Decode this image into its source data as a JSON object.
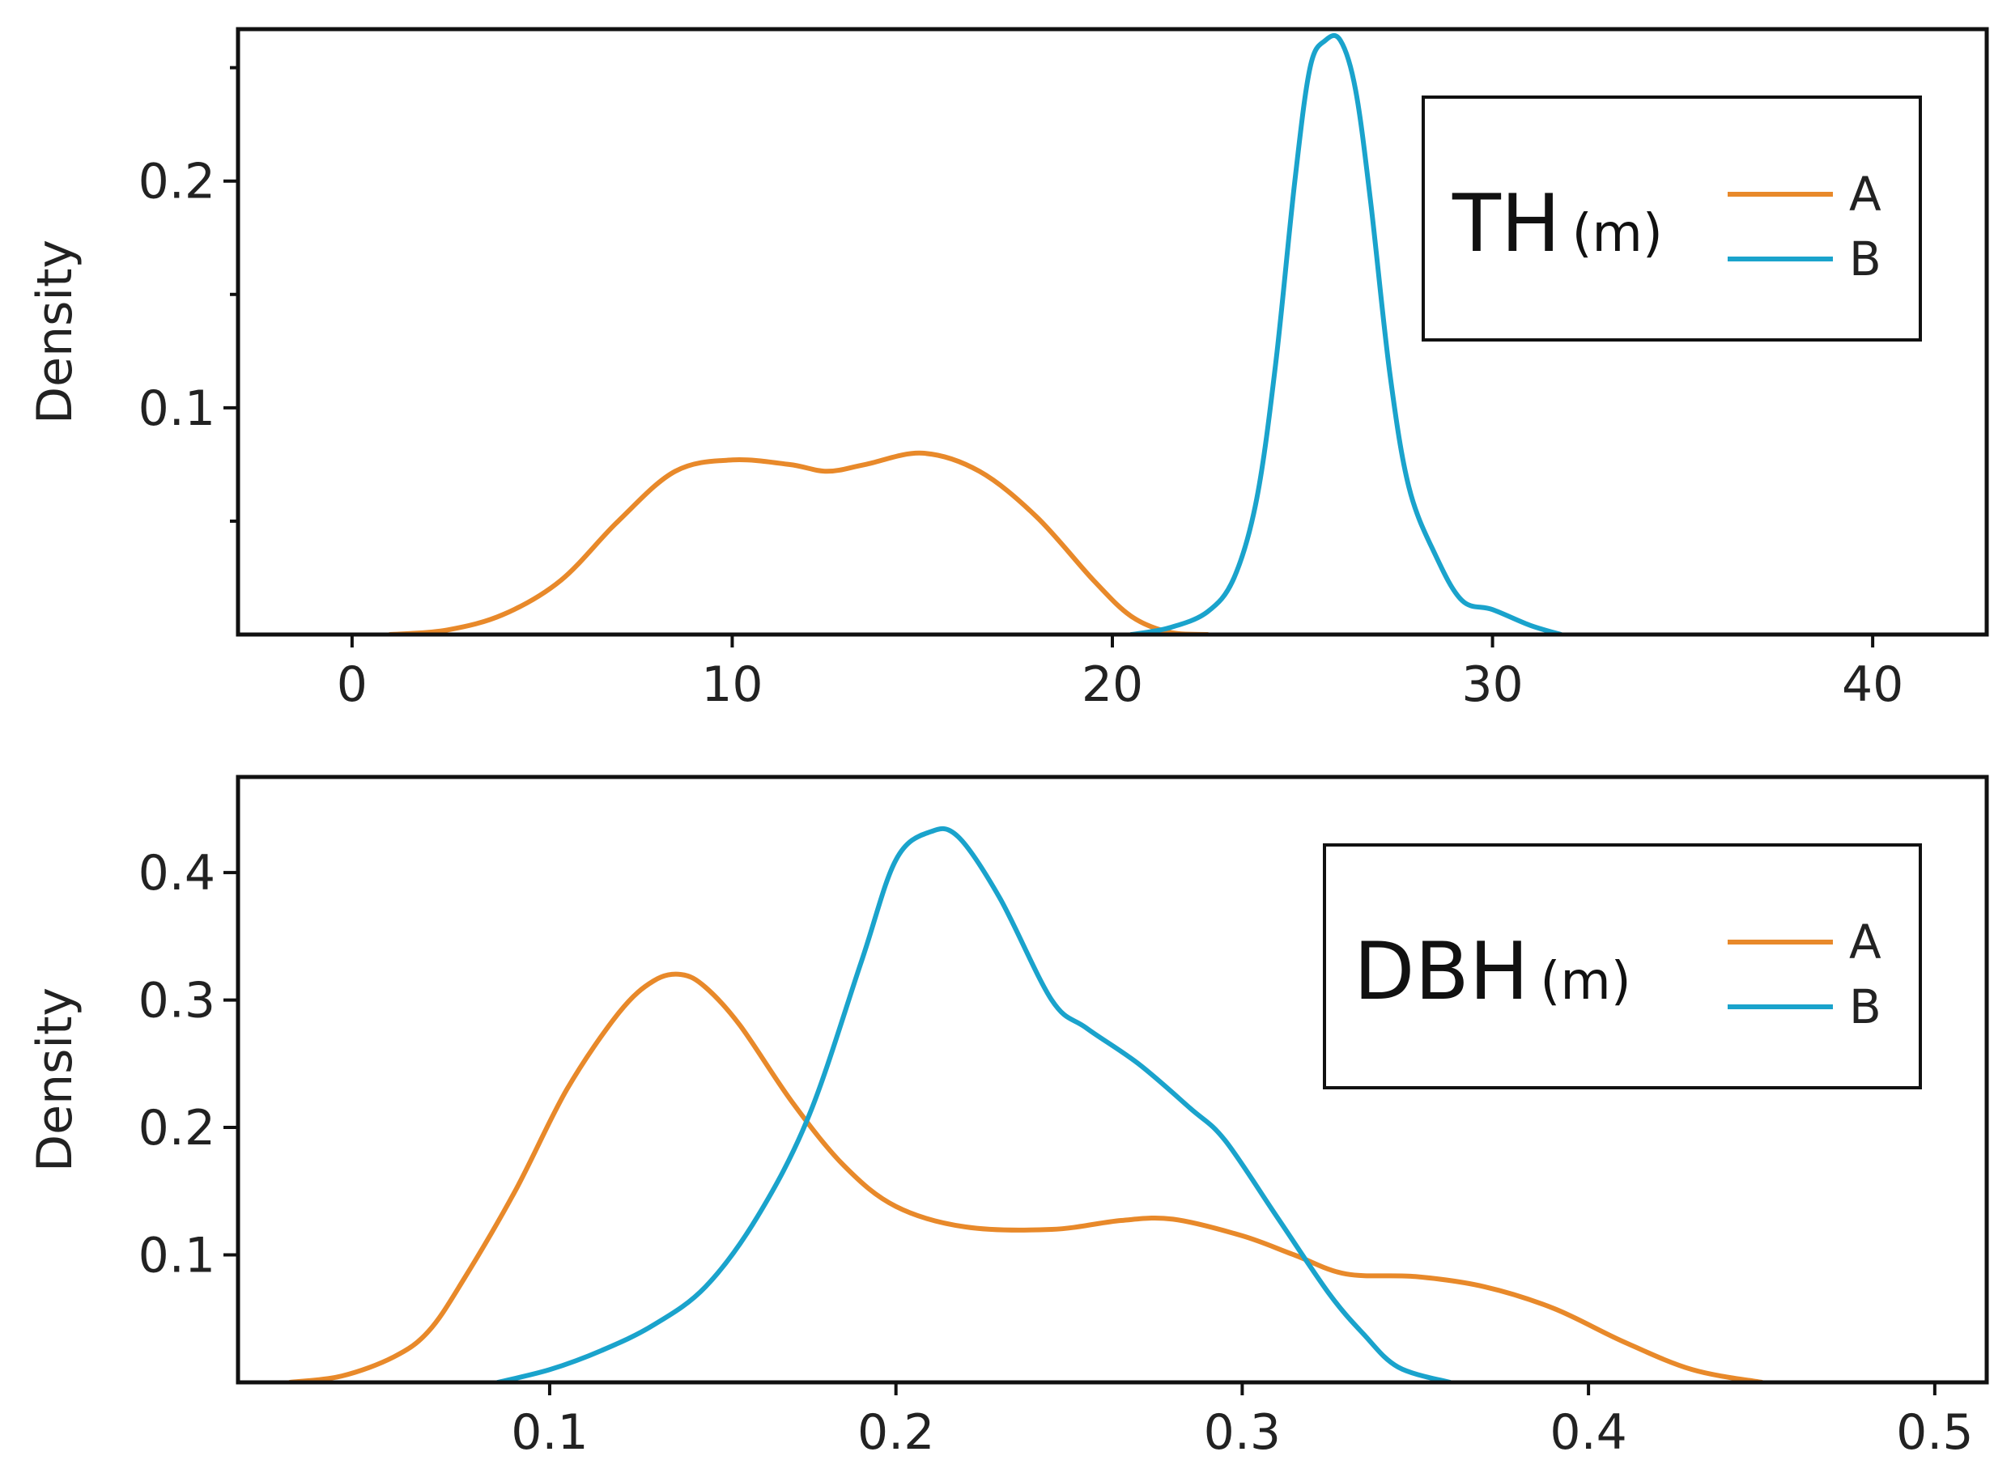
{
  "chart_data": [
    {
      "type": "line",
      "id": "th",
      "legend_title": "TH",
      "legend_unit": "(m)",
      "ylabel": "Density",
      "xlabel": "",
      "xlim": [
        -3,
        43
      ],
      "ylim": [
        0,
        0.267
      ],
      "xticks": [
        0,
        10,
        20,
        30,
        40
      ],
      "xtick_labels": [
        "0",
        "10",
        "20",
        "30",
        "40"
      ],
      "yticks": [
        0.1,
        0.2
      ],
      "ytick_labels": [
        "0.1",
        "0.2"
      ],
      "yminor_ticks": [
        0.05,
        0.15,
        0.25
      ],
      "legend_position": "top-right",
      "series": [
        {
          "name": "A",
          "color": "#E8892A",
          "x": [
            1,
            2.5,
            4,
            5.5,
            7,
            8.5,
            10,
            11.5,
            12.5,
            13.5,
            15,
            16.5,
            18,
            19.5,
            20.5,
            21.5,
            22.5
          ],
          "y": [
            0,
            0.002,
            0.009,
            0.024,
            0.05,
            0.072,
            0.077,
            0.075,
            0.072,
            0.075,
            0.08,
            0.072,
            0.052,
            0.024,
            0.008,
            0.001,
            0
          ]
        },
        {
          "name": "B",
          "color": "#1AA3CC",
          "x": [
            20.5,
            21.5,
            22.5,
            23.2,
            23.8,
            24.3,
            24.8,
            25.2,
            25.6,
            26.0,
            26.4,
            26.8,
            27.3,
            27.8,
            28.5,
            29.2,
            30.0,
            31.0,
            31.8
          ],
          "y": [
            0,
            0.003,
            0.01,
            0.025,
            0.06,
            0.12,
            0.2,
            0.25,
            0.262,
            0.262,
            0.24,
            0.19,
            0.115,
            0.065,
            0.035,
            0.015,
            0.011,
            0.004,
            0
          ]
        }
      ]
    },
    {
      "type": "line",
      "id": "dbh",
      "legend_title": "DBH",
      "legend_unit": "(m)",
      "ylabel": "Density",
      "xlabel": "",
      "xlim": [
        0.01,
        0.515
      ],
      "ylim": [
        0,
        0.475
      ],
      "xticks": [
        0.1,
        0.2,
        0.3,
        0.4,
        0.5
      ],
      "xtick_labels": [
        "0.1",
        "0.2",
        "0.3",
        "0.4",
        "0.5"
      ],
      "yticks": [
        0.1,
        0.2,
        0.3,
        0.4
      ],
      "ytick_labels": [
        "0.1",
        "0.2",
        "0.3",
        "0.4"
      ],
      "yminor_ticks": [],
      "legend_position": "top-right",
      "series": [
        {
          "name": "A",
          "color": "#E8892A",
          "x": [
            0.025,
            0.04,
            0.055,
            0.065,
            0.075,
            0.09,
            0.105,
            0.12,
            0.13,
            0.138,
            0.145,
            0.155,
            0.17,
            0.185,
            0.2,
            0.22,
            0.245,
            0.265,
            0.28,
            0.3,
            0.315,
            0.33,
            0.35,
            0.37,
            0.39,
            0.41,
            0.43,
            0.45
          ],
          "y": [
            0,
            0.005,
            0.02,
            0.04,
            0.08,
            0.15,
            0.23,
            0.29,
            0.315,
            0.32,
            0.31,
            0.28,
            0.22,
            0.17,
            0.138,
            0.122,
            0.12,
            0.127,
            0.128,
            0.115,
            0.1,
            0.085,
            0.083,
            0.075,
            0.058,
            0.032,
            0.01,
            0
          ]
        },
        {
          "name": "B",
          "color": "#1AA3CC",
          "x": [
            0.085,
            0.1,
            0.115,
            0.13,
            0.145,
            0.16,
            0.175,
            0.19,
            0.2,
            0.21,
            0.218,
            0.23,
            0.245,
            0.255,
            0.27,
            0.285,
            0.295,
            0.31,
            0.325,
            0.335,
            0.345,
            0.36
          ],
          "y": [
            0,
            0.01,
            0.025,
            0.045,
            0.075,
            0.13,
            0.21,
            0.33,
            0.41,
            0.432,
            0.428,
            0.38,
            0.3,
            0.278,
            0.25,
            0.215,
            0.19,
            0.13,
            0.07,
            0.038,
            0.012,
            0
          ]
        }
      ]
    }
  ]
}
